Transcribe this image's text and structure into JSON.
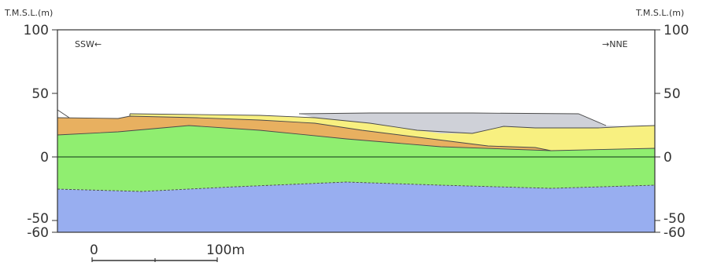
{
  "axis": {
    "left_unit": "T.M.S.L.(m)",
    "right_unit": "T.M.S.L.(m)",
    "ticks": [
      "100",
      "50",
      "0",
      "-50",
      "-60"
    ]
  },
  "direction": {
    "left": "SSW←",
    "right": "→NNE"
  },
  "scale_bar": {
    "start_label": "0",
    "end_label": "100m"
  },
  "colors": {
    "bottom_layer": "#98aef0",
    "green_layer": "#90ee70",
    "yellow_layer": "#f8f080",
    "orange_layer": "#e8b060",
    "gray_fill": "#cfd1d8",
    "frame": "#333333"
  }
}
